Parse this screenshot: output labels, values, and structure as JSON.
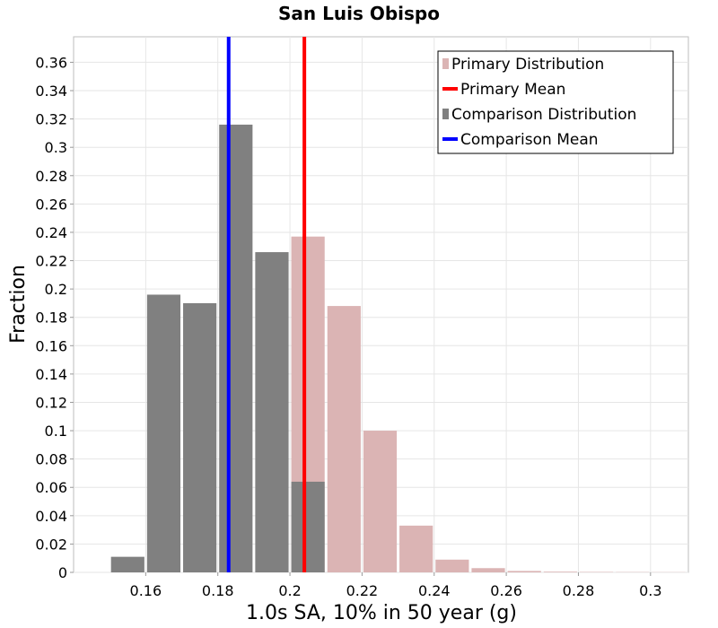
{
  "chart_data": {
    "type": "bar",
    "title": "San Luis Obispo",
    "xlabel": "1.0s SA, 10% in 50 year (g)",
    "ylabel": "Fraction",
    "xlim": [
      0.14,
      0.3105
    ],
    "ylim": [
      0,
      0.378
    ],
    "grid": true,
    "legend_position": "top-right",
    "bin_width": 0.01,
    "x_ticks": [
      {
        "value": 0.16,
        "label": "0.16"
      },
      {
        "value": 0.18,
        "label": "0.18"
      },
      {
        "value": 0.2,
        "label": "0.2"
      },
      {
        "value": 0.22,
        "label": "0.22"
      },
      {
        "value": 0.24,
        "label": "0.24"
      },
      {
        "value": 0.26,
        "label": "0.26"
      },
      {
        "value": 0.28,
        "label": "0.28"
      },
      {
        "value": 0.3,
        "label": "0.3"
      }
    ],
    "y_ticks": [
      {
        "value": 0,
        "label": "0"
      },
      {
        "value": 0.02,
        "label": "0.02"
      },
      {
        "value": 0.04,
        "label": "0.04"
      },
      {
        "value": 0.06,
        "label": "0.06"
      },
      {
        "value": 0.08,
        "label": "0.08"
      },
      {
        "value": 0.1,
        "label": "0.1"
      },
      {
        "value": 0.12,
        "label": "0.12"
      },
      {
        "value": 0.14,
        "label": "0.14"
      },
      {
        "value": 0.16,
        "label": "0.16"
      },
      {
        "value": 0.18,
        "label": "0.18"
      },
      {
        "value": 0.2,
        "label": "0.2"
      },
      {
        "value": 0.22,
        "label": "0.22"
      },
      {
        "value": 0.24,
        "label": "0.24"
      },
      {
        "value": 0.26,
        "label": "0.26"
      },
      {
        "value": 0.28,
        "label": "0.28"
      },
      {
        "value": 0.3,
        "label": "0.3"
      },
      {
        "value": 0.32,
        "label": "0.32"
      },
      {
        "value": 0.34,
        "label": "0.34"
      },
      {
        "value": 0.36,
        "label": "0.36"
      }
    ],
    "series": [
      {
        "name": "Primary Distribution",
        "kind": "histogram",
        "color": "#dbb4b4",
        "bins": [
          {
            "x": 0.205,
            "y": 0.237
          },
          {
            "x": 0.215,
            "y": 0.188
          },
          {
            "x": 0.225,
            "y": 0.1
          },
          {
            "x": 0.235,
            "y": 0.033
          },
          {
            "x": 0.245,
            "y": 0.009
          },
          {
            "x": 0.255,
            "y": 0.003
          },
          {
            "x": 0.265,
            "y": 0.001
          },
          {
            "x": 0.275,
            "y": 0.0005
          },
          {
            "x": 0.285,
            "y": 0.0003
          },
          {
            "x": 0.295,
            "y": 0.0002
          },
          {
            "x": 0.305,
            "y": 0.0001
          }
        ]
      },
      {
        "name": "Comparison Distribution",
        "kind": "histogram",
        "color": "#808080",
        "bins": [
          {
            "x": 0.155,
            "y": 0.011
          },
          {
            "x": 0.165,
            "y": 0.196
          },
          {
            "x": 0.175,
            "y": 0.19
          },
          {
            "x": 0.185,
            "y": 0.316
          },
          {
            "x": 0.195,
            "y": 0.226
          },
          {
            "x": 0.205,
            "y": 0.064
          }
        ]
      },
      {
        "name": "Primary Mean",
        "kind": "vline",
        "color": "#ff0000",
        "x": 0.204
      },
      {
        "name": "Comparison Mean",
        "kind": "vline",
        "color": "#0000ff",
        "x": 0.183
      }
    ],
    "legend": [
      {
        "label": "Primary Distribution",
        "symbol": "square",
        "color": "#dbb4b4"
      },
      {
        "label": "Primary Mean",
        "symbol": "line",
        "color": "#ff0000"
      },
      {
        "label": "Comparison Distribution",
        "symbol": "square",
        "color": "#808080"
      },
      {
        "label": "Comparison Mean",
        "symbol": "line",
        "color": "#0000ff"
      }
    ]
  }
}
